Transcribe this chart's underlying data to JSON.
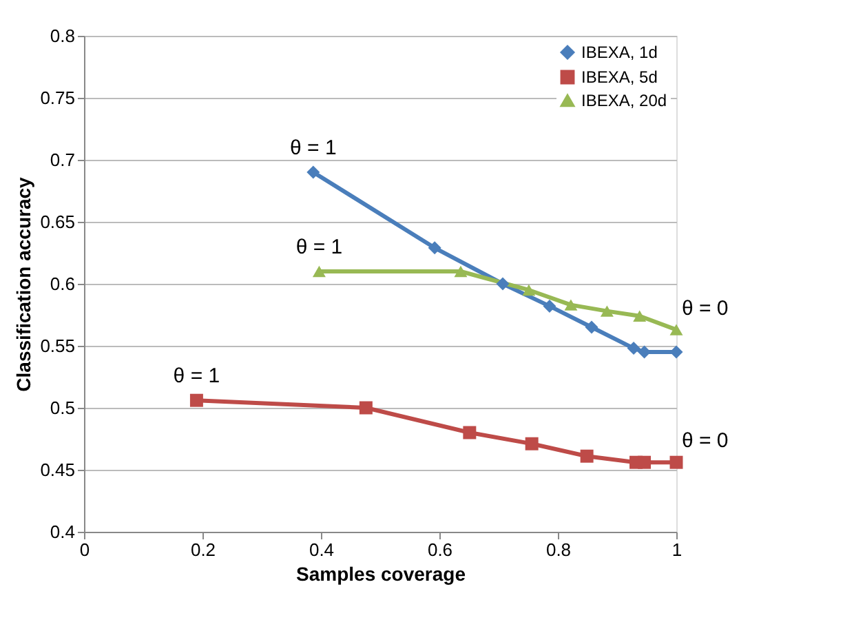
{
  "chart_data": {
    "type": "line",
    "xlabel": "Samples coverage",
    "ylabel": "Classification accuracy",
    "x": [
      0.387,
      0.592,
      0.707,
      0.786,
      0.857,
      0.928,
      0.946,
      1.0
    ],
    "series": [
      {
        "name": "IBEXA, 1d",
        "color": "#4a7ebb",
        "marker": "diamond",
        "values": [
          0.69,
          0.629,
          0.6,
          0.582,
          0.565,
          0.548,
          0.545,
          0.545
        ]
      },
      {
        "name": "IBEXA, 5d",
        "color": "#be4b48",
        "marker": "square",
        "x": [
          0.19,
          0.476,
          0.651,
          0.756,
          0.849,
          0.932,
          0.946,
          1.0
        ],
        "values": [
          0.506,
          0.5,
          0.48,
          0.471,
          0.461,
          0.456,
          0.456,
          0.456
        ]
      },
      {
        "name": "IBEXA, 20d",
        "color": "#98b954",
        "marker": "triangle",
        "x": [
          0.397,
          0.636,
          0.751,
          0.822,
          0.883,
          0.938,
          1.0
        ],
        "values": [
          0.61,
          0.61,
          0.595,
          0.583,
          0.578,
          0.574,
          0.563
        ]
      }
    ],
    "annotations": [
      {
        "text": "θ = 1",
        "x": 0.387,
        "y": 0.69
      },
      {
        "text": "θ = 1",
        "x": 0.397,
        "y": 0.61
      },
      {
        "text": "θ = 1",
        "x": 0.19,
        "y": 0.506
      },
      {
        "text": "θ = 0",
        "x": 1.0,
        "y": 0.563
      },
      {
        "text": "θ = 0",
        "x": 1.0,
        "y": 0.456
      }
    ],
    "xlim": [
      0,
      1
    ],
    "xticks": [
      0,
      0.2,
      0.4,
      0.6,
      0.8,
      1
    ],
    "ylim": [
      0.4,
      0.8
    ],
    "yticks": [
      0.4,
      0.45,
      0.5,
      0.55,
      0.6,
      0.65,
      0.7,
      0.75,
      0.8
    ],
    "grid": "y",
    "legend": "top right",
    "line_style": "solid"
  }
}
